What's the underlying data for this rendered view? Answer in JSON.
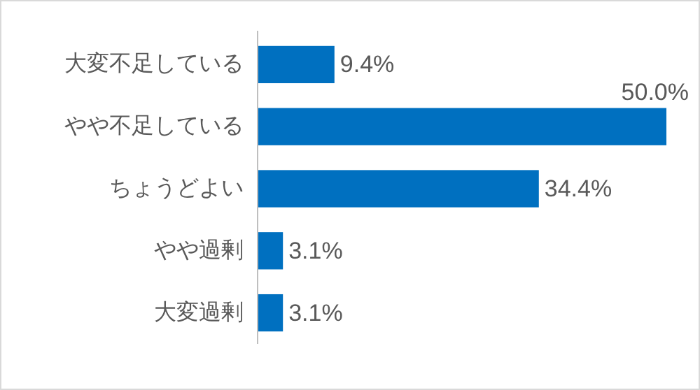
{
  "chart_data": {
    "type": "bar",
    "orientation": "horizontal",
    "categories": [
      "大変不足している",
      "やや不足している",
      "ちょうどよい",
      "やや過剰",
      "大変過剰"
    ],
    "values": [
      9.4,
      50.0,
      34.4,
      3.1,
      3.1
    ],
    "value_labels": [
      "9.4%",
      "50.0%",
      "34.4%",
      "3.1%",
      "3.1%"
    ],
    "color": "#0070c0"
  }
}
